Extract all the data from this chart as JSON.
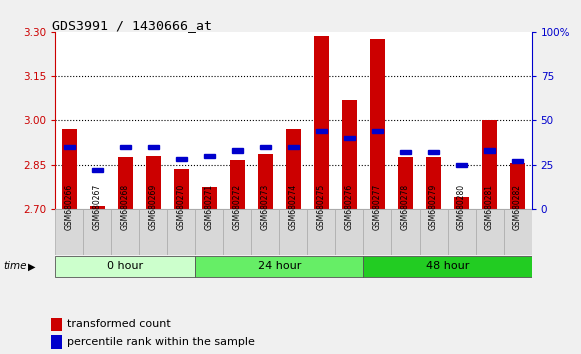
{
  "title": "GDS3991 / 1430666_at",
  "samples": [
    "GSM680266",
    "GSM680267",
    "GSM680268",
    "GSM680269",
    "GSM680270",
    "GSM680271",
    "GSM680272",
    "GSM680273",
    "GSM680274",
    "GSM680275",
    "GSM680276",
    "GSM680277",
    "GSM680278",
    "GSM680279",
    "GSM680280",
    "GSM680281",
    "GSM680282"
  ],
  "transformed_count": [
    2.97,
    2.71,
    2.875,
    2.88,
    2.835,
    2.775,
    2.865,
    2.885,
    2.97,
    3.285,
    3.07,
    3.275,
    2.875,
    2.875,
    2.74,
    3.0,
    2.855
  ],
  "percentile_rank": [
    35,
    22,
    35,
    35,
    28,
    30,
    33,
    35,
    35,
    44,
    40,
    44,
    32,
    32,
    25,
    33,
    27
  ],
  "ylim_left": [
    2.7,
    3.3
  ],
  "ylim_right": [
    0,
    100
  ],
  "yticks_left": [
    2.7,
    2.85,
    3.0,
    3.15,
    3.3
  ],
  "yticks_right": [
    0,
    25,
    50,
    75,
    100
  ],
  "hlines": [
    2.85,
    3.0,
    3.15
  ],
  "groups": [
    {
      "label": "0 hour",
      "start": 0,
      "end": 5,
      "color": "#ccffcc"
    },
    {
      "label": "24 hour",
      "start": 5,
      "end": 11,
      "color": "#66ee66"
    },
    {
      "label": "48 hour",
      "start": 11,
      "end": 17,
      "color": "#22cc22"
    }
  ],
  "bar_color": "#cc0000",
  "blue_color": "#0000cc",
  "bar_bottom": 2.7,
  "bar_width": 0.55,
  "background_color": "#f0f0f0",
  "plot_bg_color": "#ffffff",
  "left_label_color": "#cc0000",
  "right_label_color": "#0000cc",
  "legend_red_label": "transformed count",
  "legend_blue_label": "percentile rank within the sample",
  "xtick_bg_color": "#d8d8d8",
  "xtick_border_color": "#aaaaaa"
}
